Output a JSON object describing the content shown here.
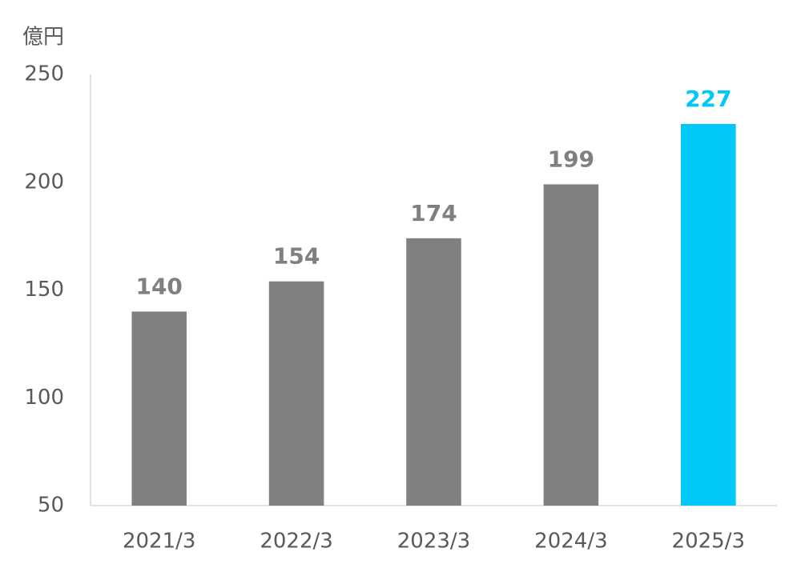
{
  "chart_data": {
    "type": "bar",
    "y_axis_label": "億円",
    "categories": [
      "2021/3",
      "2022/3",
      "2023/3",
      "2024/3",
      "2025/3"
    ],
    "values": [
      140,
      154,
      174,
      199,
      227
    ],
    "colors": [
      "#808080",
      "#808080",
      "#808080",
      "#808080",
      "#00c8f8"
    ],
    "ylim": [
      50,
      250
    ],
    "yticks": [
      50,
      100,
      150,
      200,
      250
    ],
    "grid": false
  }
}
